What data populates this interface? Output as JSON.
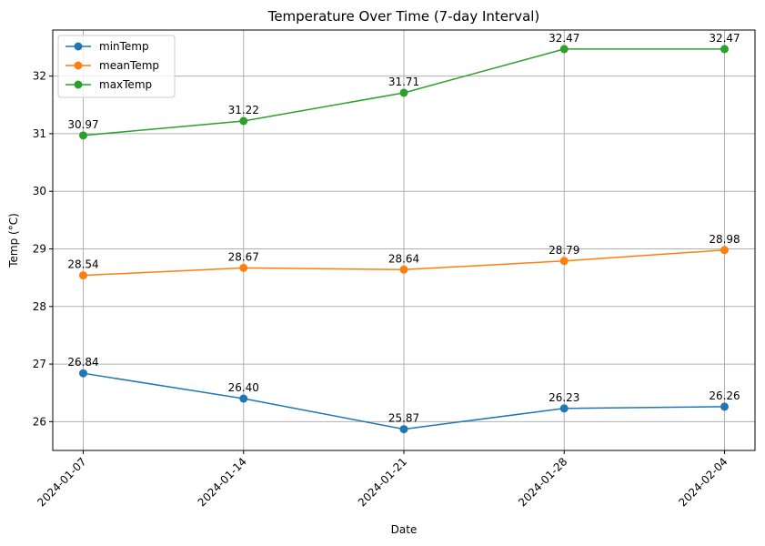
{
  "chart_data": {
    "type": "line",
    "title": "Temperature Over Time (7-day Interval)",
    "xlabel": "Date",
    "ylabel": "Temp (°C)",
    "x": [
      "2024-01-07",
      "2024-01-14",
      "2024-01-21",
      "2024-01-28",
      "2024-02-04"
    ],
    "ylim": [
      25.5,
      32.8
    ],
    "yticks": [
      26,
      27,
      28,
      29,
      30,
      31,
      32
    ],
    "grid": true,
    "legend_position": "upper-left",
    "series": [
      {
        "name": "minTemp",
        "color": "#1f77b4",
        "values": [
          26.84,
          26.4,
          25.87,
          26.23,
          26.26
        ],
        "labels": [
          "26.84",
          "26.40",
          "25.87",
          "26.23",
          "26.26"
        ]
      },
      {
        "name": "meanTemp",
        "color": "#ff7f0e",
        "values": [
          28.54,
          28.67,
          28.64,
          28.79,
          28.98
        ],
        "labels": [
          "28.54",
          "28.67",
          "28.64",
          "28.79",
          "28.98"
        ]
      },
      {
        "name": "maxTemp",
        "color": "#2ca02c",
        "values": [
          30.97,
          31.22,
          31.71,
          32.47,
          32.47
        ],
        "labels": [
          "30.97",
          "31.22",
          "31.71",
          "32.47",
          "32.47"
        ]
      }
    ]
  }
}
